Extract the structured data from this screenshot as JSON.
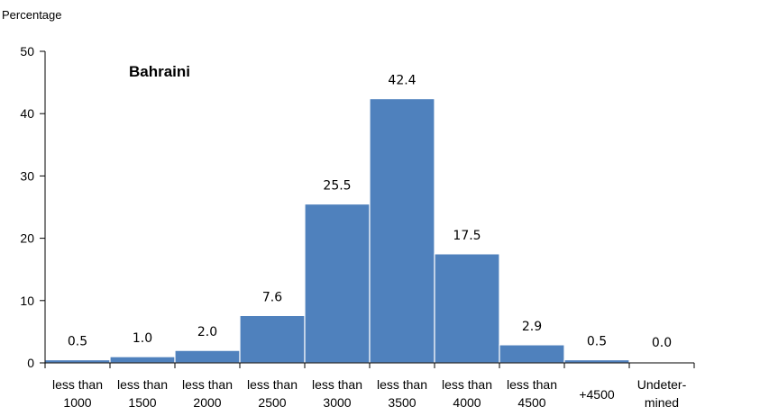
{
  "chart_data": {
    "type": "bar",
    "title": "Bahraini",
    "ylabel": "Percentage",
    "xlabel": "",
    "ylim": [
      0,
      50
    ],
    "yticks": [
      0,
      10,
      20,
      30,
      40,
      50
    ],
    "grid": false,
    "bar_color": "#4f81bd",
    "categories": [
      [
        "less than",
        "1000"
      ],
      [
        "less than",
        "1500"
      ],
      [
        "less than",
        "2000"
      ],
      [
        "less than",
        "2500"
      ],
      [
        "less than",
        "3000"
      ],
      [
        "less than",
        "3500"
      ],
      [
        "less than",
        "4000"
      ],
      [
        "less than",
        "4500"
      ],
      [
        "+4500"
      ],
      [
        "Undeter-",
        "mined"
      ]
    ],
    "values": [
      0.5,
      1.0,
      2.0,
      7.6,
      25.5,
      42.4,
      17.5,
      2.9,
      0.5,
      0.0
    ],
    "data_labels": [
      "0.5",
      "1.0",
      "2.0",
      "7.6",
      "25.5",
      "42.4",
      "17.5",
      "2.9",
      "0.5",
      "0.0"
    ]
  }
}
